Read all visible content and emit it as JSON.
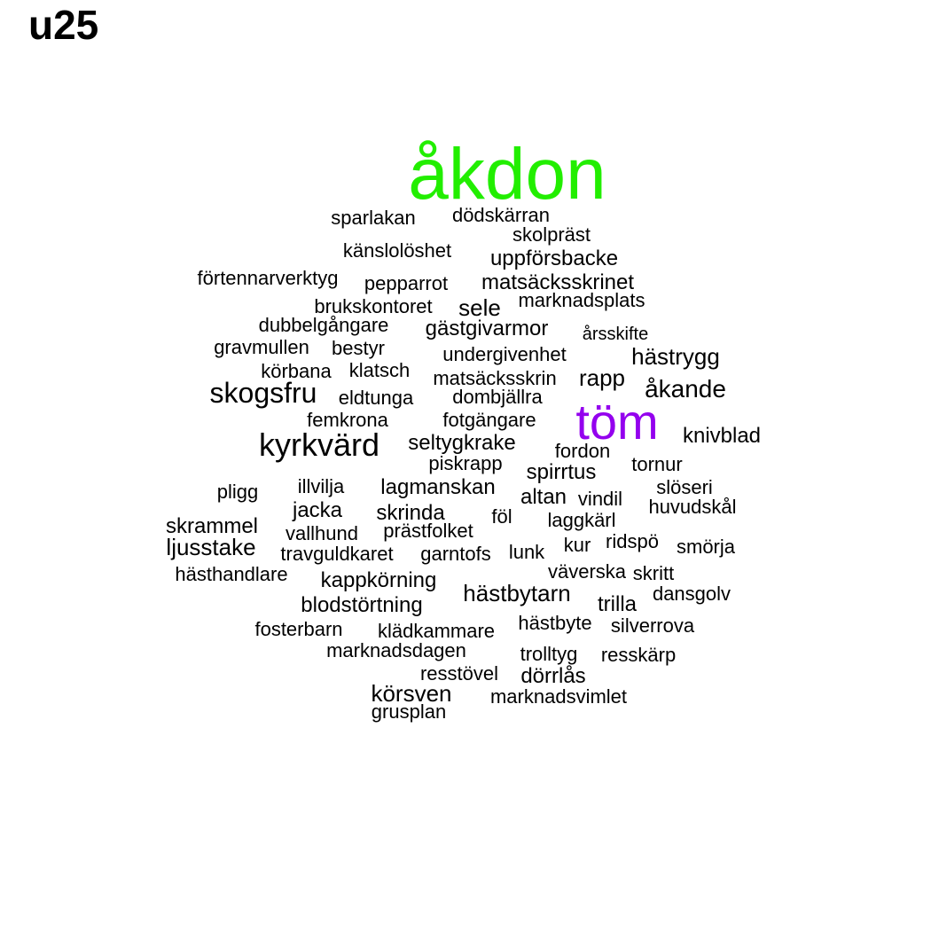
{
  "title": "u25",
  "colors": {
    "default": "#000000",
    "top1": "#22ee00",
    "top2": "#9400ee"
  },
  "words": [
    {
      "text": "åkdon",
      "color": "#22ee00"
    },
    {
      "text": "töm",
      "color": "#9400ee"
    },
    {
      "text": "kyrkvärd"
    },
    {
      "text": "skogsfru"
    },
    {
      "text": "hästrygg"
    },
    {
      "text": "åkande"
    },
    {
      "text": "sparlakan"
    },
    {
      "text": "dödskärran"
    },
    {
      "text": "skolpräst"
    },
    {
      "text": "känslolöshet"
    },
    {
      "text": "uppförsbacke"
    },
    {
      "text": "förtennarverktyg"
    },
    {
      "text": "pepparrot"
    },
    {
      "text": "matsäcksskrinet"
    },
    {
      "text": "brukskontoret"
    },
    {
      "text": "sele"
    },
    {
      "text": "marknadsplats"
    },
    {
      "text": "dubbelgångare"
    },
    {
      "text": "gästgivarmor"
    },
    {
      "text": "årsskifte"
    },
    {
      "text": "gravmullen"
    },
    {
      "text": "bestyr"
    },
    {
      "text": "undergivenhet"
    },
    {
      "text": "körbana"
    },
    {
      "text": "klatsch"
    },
    {
      "text": "matsäcksskrin"
    },
    {
      "text": "rapp"
    },
    {
      "text": "eldtunga"
    },
    {
      "text": "dombjällra"
    },
    {
      "text": "femkrona"
    },
    {
      "text": "fotgängare"
    },
    {
      "text": "knivblad"
    },
    {
      "text": "seltygkrake"
    },
    {
      "text": "fordon"
    },
    {
      "text": "piskrapp"
    },
    {
      "text": "spirrtus"
    },
    {
      "text": "tornur"
    },
    {
      "text": "pligg"
    },
    {
      "text": "illvilja"
    },
    {
      "text": "lagmanskan"
    },
    {
      "text": "altan"
    },
    {
      "text": "vindil"
    },
    {
      "text": "slöseri"
    },
    {
      "text": "huvudskål"
    },
    {
      "text": "jacka"
    },
    {
      "text": "skrinda"
    },
    {
      "text": "föl"
    },
    {
      "text": "laggkärl"
    },
    {
      "text": "skrammel"
    },
    {
      "text": "vallhund"
    },
    {
      "text": "prästfolket"
    },
    {
      "text": "ljusstake"
    },
    {
      "text": "kur"
    },
    {
      "text": "ridspö"
    },
    {
      "text": "smörja"
    },
    {
      "text": "travguldkaret"
    },
    {
      "text": "garntofs"
    },
    {
      "text": "lunk"
    },
    {
      "text": "väverska"
    },
    {
      "text": "skritt"
    },
    {
      "text": "hästhandlare"
    },
    {
      "text": "kappkörning"
    },
    {
      "text": "hästbytarn"
    },
    {
      "text": "dansgolv"
    },
    {
      "text": "trilla"
    },
    {
      "text": "blodstörtning"
    },
    {
      "text": "hästbyte"
    },
    {
      "text": "silverrova"
    },
    {
      "text": "fosterbarn"
    },
    {
      "text": "klädkammare"
    },
    {
      "text": "marknadsdagen"
    },
    {
      "text": "trolltyg"
    },
    {
      "text": "resskärp"
    },
    {
      "text": "resstövel"
    },
    {
      "text": "dörrlås"
    },
    {
      "text": "körsven"
    },
    {
      "text": "marknadsvimlet"
    },
    {
      "text": "grusplan"
    }
  ]
}
